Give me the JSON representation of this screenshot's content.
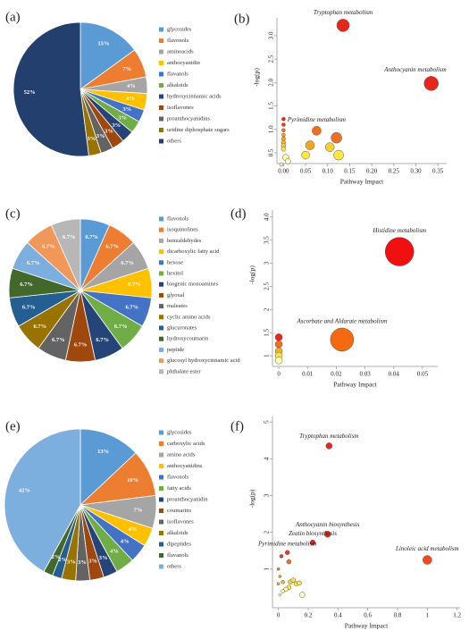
{
  "chart_data": [
    {
      "type": "pie",
      "label": "(a)",
      "categories": [
        "glycosides",
        "flavonols",
        "aminoacids",
        "anthocyanidin",
        "flavanols",
        "alkaloids",
        "hydroxycinnamic acids",
        "isoflavones",
        "proanthocyanidins",
        "uridine diphosphate sugars",
        "others"
      ],
      "values": [
        15,
        7,
        4,
        4,
        3,
        3,
        3,
        3,
        3,
        3,
        52
      ],
      "value_labels": [
        "15%",
        "7%",
        "4%",
        "4%",
        "3%",
        "3%",
        "3%",
        "3%",
        "3%",
        "3%",
        "52%"
      ],
      "colors": [
        "#5b9bd5",
        "#ed7d31",
        "#a5a5a5",
        "#ffc000",
        "#4472c4",
        "#70ad47",
        "#264478",
        "#9e480e",
        "#636363",
        "#997300",
        "#223f6e"
      ]
    },
    {
      "type": "bubble",
      "label": "(b)",
      "xlabel": "Pathway Impact",
      "ylabel": "-log(p)",
      "x": [
        0.135,
        0.335,
        0.075,
        0.12,
        0.06,
        0.105,
        0.125,
        0.05,
        0,
        0,
        0,
        0,
        0,
        0,
        0,
        0,
        0.005,
        0.01,
        -0.005
      ],
      "y": [
        3.22,
        1.98,
        0.97,
        0.82,
        0.66,
        0.62,
        0.45,
        0.45,
        1.22,
        1.1,
        0.98,
        0.88,
        0.8,
        0.72,
        0.65,
        0.58,
        0.4,
        0.32,
        0.25
      ],
      "sizes": [
        7,
        8,
        5,
        6,
        5,
        5,
        5.5,
        4.5,
        2,
        2,
        2,
        2,
        2.2,
        2.5,
        2.5,
        2.5,
        3.5,
        3,
        2
      ],
      "colors": [
        "#e8261b",
        "#e8261b",
        "#f07020",
        "#f07020",
        "#f5a623",
        "#f8d030",
        "#ffe640",
        "#ffe640",
        "#e8261b",
        "#e04020",
        "#f07020",
        "#f5a623",
        "#f5a623",
        "#f8c030",
        "#f8d030",
        "#ffe640",
        "#ffff99",
        "#ffffcc",
        "#ffffcc"
      ],
      "labels": [
        "Tryptophan metabolism",
        "Anthocyanin metabolism",
        "Pyrimidine metabolism",
        null,
        null,
        null,
        null,
        null,
        null,
        null,
        null,
        null,
        null,
        null,
        null,
        null,
        null,
        null,
        null
      ],
      "xlim": [
        -0.015,
        0.37
      ],
      "ylim": [
        0.27,
        3.38
      ],
      "xticks": [
        {
          "value": 0,
          "label": "0.00"
        },
        0.05,
        {
          "value": 0.1,
          "label": "0.10"
        },
        0.15,
        {
          "value": 0.2,
          "label": "0.20"
        },
        0.25,
        {
          "value": 0.3,
          "label": "0.30"
        },
        0.35
      ],
      "yticks": [
        0.5,
        {
          "value": 1,
          "label": "1.0"
        },
        1.5,
        {
          "value": 2,
          "label": "2.0"
        },
        2.5,
        {
          "value": 3,
          "label": "3.0"
        }
      ]
    },
    {
      "type": "pie",
      "label": "(c)",
      "categories": [
        "flavonols",
        "isoquinolines",
        "benzaldehydes",
        "dicarboxylic fatty acid",
        "hexose",
        "hexitol",
        "biogenic monoamines",
        "glyoxal",
        "maleates",
        "cyclic amino acids",
        "glucuronates",
        "hydroxycoumarin",
        "peptide",
        "glucosyl hydroxycinnamic acid",
        "phthalate ester"
      ],
      "values": [
        6.7,
        6.7,
        6.7,
        6.7,
        6.7,
        6.7,
        6.7,
        6.7,
        6.7,
        6.7,
        6.7,
        6.7,
        6.7,
        6.7,
        6.7
      ],
      "value_labels": [
        "6.7%",
        "6.7%",
        "6.7%",
        "6.7%",
        "6.7%",
        "6.7%",
        "6.7%",
        "6.7%",
        "6.7%",
        "6.7%",
        "6.7%",
        "6.7%",
        "6.7%",
        "6.7%",
        "6.7%"
      ],
      "colors": [
        "#5b9bd5",
        "#ed7d31",
        "#a5a5a5",
        "#ffc000",
        "#4472c4",
        "#70ad47",
        "#264478",
        "#9e480e",
        "#636363",
        "#997300",
        "#255e91",
        "#43682b",
        "#7cafdd",
        "#f1975a",
        "#b7b7b7"
      ]
    },
    {
      "type": "bubble",
      "label": "(d)",
      "xlabel": "Pathway Impact",
      "ylabel": "-log(p)",
      "x": [
        0.042,
        0.022,
        0,
        0,
        0,
        0,
        0
      ],
      "y": [
        3.25,
        1.35,
        1.4,
        1.25,
        1.1,
        1.0,
        0.9
      ],
      "sizes": [
        16,
        13,
        4,
        4,
        4,
        4,
        4
      ],
      "colors": [
        "#f01010",
        "#f56a10",
        "#e8261b",
        "#f07020",
        "#f8b020",
        "#ffe640",
        "#ffffb0"
      ],
      "labels": [
        "Histidine metabolism",
        "Ascorbate and Aldarate metabolism",
        null,
        null,
        null,
        null,
        null
      ],
      "xlim": [
        -0.0022,
        0.0553
      ],
      "ylim": [
        0.77,
        4.15
      ],
      "xticks": [
        0,
        0.01,
        0.02,
        0.03,
        0.04,
        0.05
      ],
      "yticks": [
        1,
        1.5,
        2,
        2.5,
        3,
        3.5,
        {
          "value": 4,
          "label": "4.0"
        }
      ]
    },
    {
      "type": "pie",
      "label": "(e)",
      "categories": [
        "glycosides",
        "carboxylic acids",
        "amino acids",
        "anthocyanidins",
        "flavonols",
        "fatty acids",
        "proanthocyanidin",
        "coumarins",
        "isoflavones",
        "alkaloids",
        "dipeptides",
        "flavanols",
        "others"
      ],
      "values": [
        13,
        10,
        7,
        4,
        4,
        4,
        3,
        3,
        3,
        3,
        2,
        2,
        42
      ],
      "value_labels": [
        "13%",
        "10%",
        "7%",
        "4%",
        "4%",
        "4%",
        "3%",
        "3%",
        "3%",
        "3%",
        "2%",
        "2%",
        "42%"
      ],
      "colors": [
        "#5b9bd5",
        "#ed7d31",
        "#a5a5a5",
        "#ffc000",
        "#4472c4",
        "#70ad47",
        "#264478",
        "#9e480e",
        "#636363",
        "#997300",
        "#255e91",
        "#43682b",
        "#7cafdd"
      ]
    },
    {
      "type": "bubble",
      "label": "(f)",
      "xlabel": "Pathway Impact",
      "ylabel": "-log(p)",
      "x": [
        0.34,
        0.33,
        0.06,
        0.23,
        1.0,
        0.02,
        0.07,
        0.0,
        0.01,
        0.0,
        0.03,
        0.08,
        0.1,
        0.12,
        0.14,
        0.07,
        0.05,
        0.03,
        0.01,
        0.16
      ],
      "y": [
        4.35,
        1.95,
        1.45,
        1.72,
        1.25,
        1.35,
        1.2,
        1.0,
        0.8,
        0.6,
        0.65,
        0.65,
        0.7,
        0.6,
        0.62,
        0.5,
        0.45,
        0.4,
        0.3,
        0.3
      ],
      "sizes": [
        3.5,
        3.5,
        2.5,
        3,
        5,
        2,
        2.5,
        1.5,
        1.5,
        1.5,
        2,
        2.5,
        2.5,
        2.5,
        2.5,
        2.5,
        2.5,
        2,
        1.5,
        3
      ],
      "colors": [
        "#e8261b",
        "#e8261b",
        "#e04020",
        "#e8261b",
        "#f04a20",
        "#e04020",
        "#f07020",
        "#f07020",
        "#f5a623",
        "#f5a623",
        "#f8c030",
        "#f8d030",
        "#ffe640",
        "#ffe640",
        "#ffe640",
        "#ffe640",
        "#ffff99",
        "#ffff99",
        "#ffffcc",
        "#ffffcc"
      ],
      "labels": [
        "Tryptophan metabolism",
        "Anthocyanin biosynthesis",
        "Pyrimidine metabolism",
        "Zeatin biosynthesis",
        "Linoleic acid metabolism",
        null,
        null,
        null,
        null,
        null,
        null,
        null,
        null,
        null,
        null,
        null,
        null,
        null,
        null,
        null
      ],
      "xlim": [
        -0.04,
        1.22
      ],
      "ylim": [
        -0.05,
        5.15
      ],
      "xticks": [
        0,
        0.2,
        0.4,
        0.6,
        0.8,
        1,
        1.2
      ],
      "yticks": [
        1,
        2,
        3,
        4,
        5
      ]
    }
  ]
}
